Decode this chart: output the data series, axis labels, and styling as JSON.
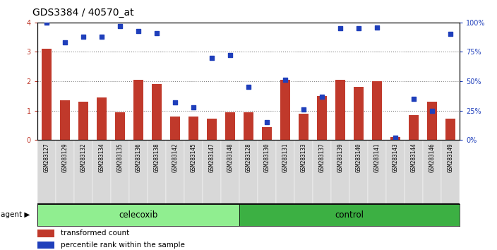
{
  "title": "GDS3384 / 40570_at",
  "samples": [
    "GSM283127",
    "GSM283129",
    "GSM283132",
    "GSM283134",
    "GSM283135",
    "GSM283136",
    "GSM283138",
    "GSM283142",
    "GSM283145",
    "GSM283147",
    "GSM283148",
    "GSM283128",
    "GSM283130",
    "GSM283131",
    "GSM283133",
    "GSM283137",
    "GSM283139",
    "GSM283140",
    "GSM283141",
    "GSM283143",
    "GSM283144",
    "GSM283146",
    "GSM283149"
  ],
  "bar_values": [
    3.1,
    1.35,
    1.3,
    1.45,
    0.95,
    2.05,
    1.9,
    0.8,
    0.8,
    0.72,
    0.95,
    0.95,
    0.45,
    2.05,
    0.9,
    1.5,
    2.05,
    1.8,
    2.0,
    0.1,
    0.85,
    1.3,
    0.72
  ],
  "percentile_values": [
    100,
    83,
    88,
    88,
    97,
    93,
    91,
    32,
    28,
    70,
    72,
    45,
    15,
    51,
    26,
    37,
    95,
    95,
    96,
    2,
    35,
    25,
    90
  ],
  "celecoxib_count": 11,
  "control_count": 12,
  "agent_label": "agent",
  "celecoxib_label": "celecoxib",
  "control_label": "control",
  "bar_color": "#C0392B",
  "dot_color": "#1F3FBB",
  "celecoxib_bg": "#90EE90",
  "control_bg": "#3CB043",
  "yticks_left": [
    0,
    1,
    2,
    3,
    4
  ],
  "yticks_right": [
    0,
    25,
    50,
    75,
    100
  ],
  "ylabel_left_color": "#C0392B",
  "ylabel_right_color": "#1F3FBB",
  "legend_bar_label": "transformed count",
  "legend_dot_label": "percentile rank within the sample",
  "title_fontsize": 10,
  "tick_fontsize": 7,
  "xtick_fontsize": 5.5,
  "label_fontsize": 8
}
